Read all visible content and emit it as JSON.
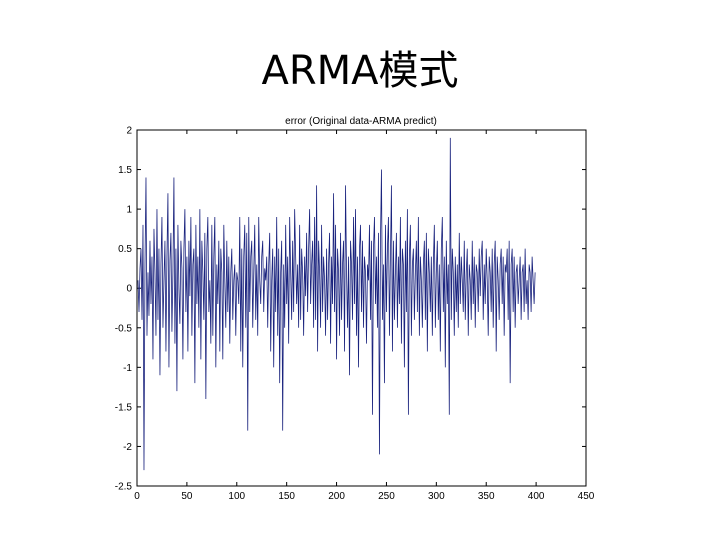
{
  "slide": {
    "title": "ARMA模式"
  },
  "colors": {
    "series": "#1a237e",
    "axis": "#000000",
    "background": "#ffffff"
  },
  "chart_data": {
    "type": "line",
    "title": "error (Original data-ARMA predict)",
    "xlabel": "",
    "ylabel": "",
    "xlim": [
      0,
      450
    ],
    "ylim": [
      -2.5,
      2
    ],
    "xticks": [
      0,
      50,
      100,
      150,
      200,
      250,
      300,
      350,
      400,
      450
    ],
    "yticks": [
      2,
      1.5,
      1,
      0.5,
      0,
      -0.5,
      -1,
      -1.5,
      -2,
      -2.5
    ],
    "grid": false,
    "series": [
      {
        "x_start": 1,
        "x_step": 1,
        "values": [
          0.1,
          -0.3,
          0.25,
          0.5,
          -0.4,
          0.8,
          -2.3,
          0.3,
          1.4,
          -0.6,
          0.2,
          -0.35,
          0.6,
          -0.2,
          0.4,
          -0.9,
          0.75,
          0.2,
          -0.6,
          1.0,
          -0.4,
          0.5,
          -1.1,
          0.3,
          0.9,
          -0.5,
          0.1,
          0.6,
          -0.8,
          0.4,
          1.2,
          -1.0,
          0.35,
          0.7,
          -0.55,
          0.2,
          1.4,
          -0.7,
          0.5,
          -1.3,
          0.8,
          0.0,
          -0.45,
          0.6,
          0.25,
          -0.9,
          0.5,
          1.0,
          -0.3,
          0.4,
          -0.8,
          0.6,
          -0.1,
          0.9,
          -0.6,
          0.3,
          0.5,
          -1.2,
          0.8,
          -0.2,
          0.4,
          -0.5,
          1.0,
          -0.9,
          0.6,
          0.2,
          -0.4,
          0.7,
          -1.4,
          0.5,
          0.9,
          -0.3,
          0.1,
          -0.7,
          0.8,
          -0.6,
          0.4,
          0.9,
          -1.0,
          0.3,
          -0.2,
          0.6,
          -0.8,
          0.5,
          0.2,
          -0.9,
          0.8,
          0.1,
          -0.5,
          0.6,
          -0.3,
          0.4,
          -0.7,
          0.2,
          0.5,
          -0.4,
          0.1,
          0.3,
          -0.6,
          0.2,
          0.1,
          -0.2,
          0.9,
          -0.8,
          0.5,
          -1.0,
          0.4,
          0.8,
          -0.5,
          0.7,
          -1.8,
          0.9,
          -0.3,
          0.4,
          0.6,
          -0.5,
          0.2,
          0.8,
          -0.4,
          0.3,
          -0.6,
          0.9,
          0.1,
          -0.2,
          0.4,
          0.6,
          -0.3,
          0.25,
          0.1,
          0.4,
          -0.5,
          0.3,
          0.7,
          -0.8,
          0.1,
          0.5,
          -1.0,
          0.4,
          -0.3,
          0.9,
          -0.6,
          0.5,
          -1.2,
          0.2,
          0.6,
          -1.8,
          0.3,
          -0.5,
          0.8,
          -0.2,
          0.4,
          -0.7,
          0.9,
          0.2,
          -0.4,
          0.6,
          -0.3,
          1.0,
          0.4,
          -0.2,
          0.3,
          -0.5,
          0.8,
          -0.4,
          0.5,
          0.2,
          -0.6,
          0.4,
          -0.1,
          0.7,
          -0.3,
          0.5,
          1.0,
          -0.2,
          0.3,
          0.6,
          -0.5,
          0.9,
          -0.4,
          1.3,
          -0.8,
          0.6,
          0.2,
          -0.5,
          0.8,
          -0.3,
          0.4,
          0.1,
          -0.6,
          0.5,
          -0.4,
          0.3,
          0.7,
          -0.7,
          0.4,
          -0.2,
          1.2,
          -0.3,
          0.8,
          -0.9,
          0.5,
          0.2,
          -0.6,
          0.7,
          -0.4,
          0.3,
          0.6,
          -0.8,
          1.3,
          0.2,
          -0.5,
          0.4,
          -1.1,
          0.6,
          0.3,
          -0.4,
          0.9,
          -0.2,
          1.0,
          -0.6,
          0.4,
          -1.0,
          0.5,
          0.8,
          -0.3,
          0.6,
          -0.5,
          0.4,
          0.2,
          -0.7,
          0.3,
          0.1,
          0.8,
          -0.4,
          0.6,
          -1.6,
          0.5,
          0.9,
          -0.2,
          0.4,
          -0.5,
          0.7,
          -2.1,
          0.6,
          1.5,
          -0.4,
          0.3,
          -1.2,
          0.8,
          -0.3,
          0.5,
          0.9,
          -0.6,
          0.4,
          1.3,
          -0.8,
          0.6,
          -0.4,
          0.2,
          0.7,
          -0.5,
          0.4,
          -0.2,
          0.9,
          -0.7,
          0.5,
          0.3,
          -1.0,
          0.6,
          -0.3,
          1.0,
          -1.6,
          0.4,
          0.8,
          -0.6,
          0.3,
          0.5,
          -0.4,
          0.2,
          0.6,
          -0.3,
          0.9,
          -0.6,
          0.4,
          0.1,
          -0.5,
          0.3,
          0.6,
          -0.4,
          0.7,
          -0.8,
          0.5,
          0.2,
          -0.3,
          0.4,
          -0.6,
          0.3,
          0.8,
          -0.5,
          0.2,
          0.6,
          -0.4,
          0.3,
          -0.8,
          0.5,
          0.9,
          -0.3,
          0.4,
          -1.0,
          0.6,
          -0.2,
          0.3,
          -1.6,
          1.9,
          -0.4,
          0.5,
          0.2,
          -0.6,
          0.4,
          -0.3,
          0.3,
          -0.5,
          0.7,
          -0.2,
          0.4,
          0.1,
          -0.3,
          0.6,
          -0.4,
          0.2,
          0.5,
          -0.6,
          0.3,
          0.1,
          -0.4,
          0.6,
          -0.2,
          0.4,
          -0.5,
          0.3,
          0.2,
          -0.3,
          0.5,
          -0.1,
          0.4,
          0.6,
          -0.4,
          0.3,
          -0.2,
          0.5,
          0.1,
          -0.6,
          0.4,
          0.2,
          -0.3,
          0.5,
          -0.5,
          0.3,
          0.6,
          -0.8,
          0.4,
          0.1,
          -0.4,
          0.3,
          0.5,
          -0.2,
          0.4,
          -0.6,
          0.3,
          0.2,
          0.5,
          -0.4,
          0.6,
          -1.2,
          0.3,
          0.5,
          -0.3,
          0.4,
          -0.5,
          0.2,
          0.3,
          -0.2,
          0.1,
          0.4,
          -0.4,
          0.2,
          0.3,
          -0.3,
          0.5,
          -0.2,
          0.1,
          -0.4,
          0.3,
          0.2,
          -0.3,
          0.4,
          0.1,
          -0.2,
          0.2
        ]
      }
    ]
  }
}
